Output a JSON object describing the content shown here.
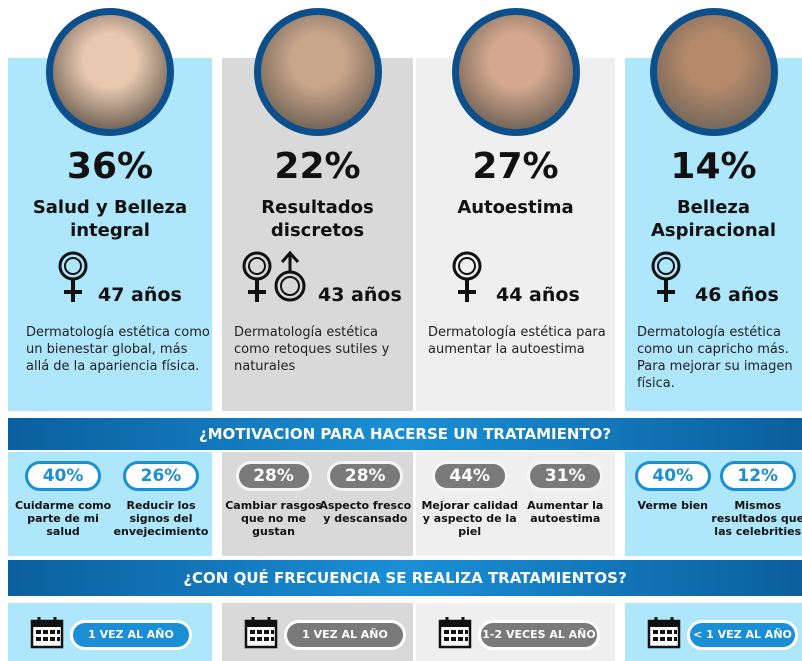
{
  "motivation_title": "¿MOTIVACION PARA HACERSE UN TRATAMIENTO?",
  "frequency_title": "¿CON QUÉ FRECUENCIA SE REALIZA TRATAMIENTOS?",
  "segments": [
    {
      "percent": "36%",
      "title": "Salud y Belleza integral",
      "age": "47 años",
      "description": "Dermatología estética como un bienestar global, más allá de la apariencia física.",
      "motivations": [
        {
          "percent": "40%",
          "label": "Cuidarme como parte de mi salud"
        },
        {
          "percent": "26%",
          "label": "Reducir los signos del envejecimiento"
        }
      ],
      "frequency": "1 VEZ AL AÑO"
    },
    {
      "percent": "22%",
      "title": "Resultados discretos",
      "age": "43 años",
      "description": "Dermatología estética como retoques sutiles y naturales",
      "motivations": [
        {
          "percent": "28%",
          "label": "Cambiar rasgos que no me gustan"
        },
        {
          "percent": "28%",
          "label": "Aspecto fresco y descansado"
        }
      ],
      "frequency": "1 VEZ AL AÑO"
    },
    {
      "percent": "27%",
      "title": "Autoestima",
      "age": "44 años",
      "description": "Dermatología estética para aumentar la autoestima",
      "motivations": [
        {
          "percent": "44%",
          "label": "Mejorar calidad y aspecto de la piel"
        },
        {
          "percent": "31%",
          "label": "Aumentar la autoestima"
        }
      ],
      "frequency": "1-2 VECES AL AÑO"
    },
    {
      "percent": "14%",
      "title": "Belleza Aspiracional",
      "age": "46 años",
      "description": "Dermatología estética como un capricho más. Para mejorar su imagen física.",
      "motivations": [
        {
          "percent": "40%",
          "label": "Verme bien"
        },
        {
          "percent": "12%",
          "label": "Mismos resultados que las celebrities"
        }
      ],
      "frequency": "< 1 VEZ AL AÑO"
    }
  ]
}
